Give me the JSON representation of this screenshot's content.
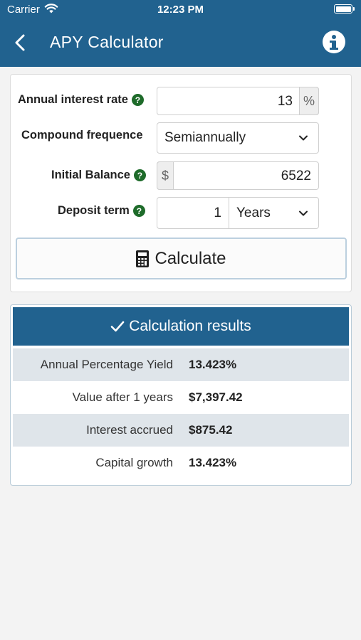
{
  "status": {
    "carrier": "Carrier",
    "time": "12:23 PM"
  },
  "nav": {
    "title": "APY Calculator"
  },
  "form": {
    "annual_rate": {
      "label": "Annual interest rate",
      "value": "13",
      "suffix": "%"
    },
    "compound": {
      "label": "Compound frequence",
      "value": "Semiannually"
    },
    "balance": {
      "label": "Initial Balance",
      "prefix": "$",
      "value": "6522"
    },
    "term": {
      "label": "Deposit term",
      "value": "1",
      "unit": "Years"
    },
    "calculate_label": "Calculate"
  },
  "results": {
    "title": "Calculation results",
    "rows": [
      {
        "label": "Annual Percentage Yield",
        "value": "13.423%"
      },
      {
        "label": "Value after 1 years",
        "value": "$7,397.42"
      },
      {
        "label": "Interest accrued",
        "value": "$875.42"
      },
      {
        "label": "Capital growth",
        "value": "13.423%"
      }
    ]
  },
  "colors": {
    "primary": "#21628f",
    "help": "#1e6b2a",
    "row_shade": "#dfe5ea"
  },
  "icons": {
    "back": "chevron-left-icon",
    "info": "info-icon",
    "help": "question-icon",
    "dropdown": "chevron-down-icon",
    "calculator": "calculator-icon",
    "check": "check-icon"
  }
}
